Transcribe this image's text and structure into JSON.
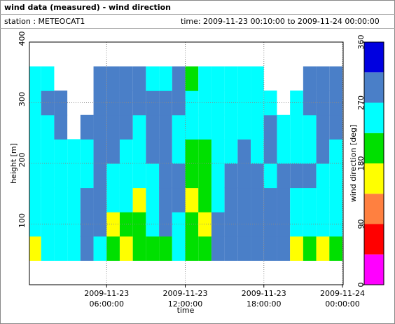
{
  "header": {
    "title": "wind data (measured) - wind direction",
    "station": "station : METEOCAT1",
    "time": "time: 2009-11-23 00:10:00 to 2009-11-24 00:00:00"
  },
  "chart_data": {
    "type": "heatmap",
    "xlabel": "time",
    "ylabel": "height [m]",
    "zlabel": "wind direction [deg]",
    "xlim": [
      0,
      24
    ],
    "xticks": [
      {
        "value": 6,
        "label": [
          "2009-11-23",
          "06:00:00"
        ]
      },
      {
        "value": 12,
        "label": [
          "2009-11-23",
          "12:00:00"
        ]
      },
      {
        "value": 18,
        "label": [
          "2009-11-23",
          "18:00:00"
        ]
      },
      {
        "value": 24,
        "label": [
          "2009-11-24",
          "00:00:00"
        ]
      }
    ],
    "ylim": [
      0,
      400
    ],
    "yticks": [
      100,
      200,
      300,
      400
    ],
    "zlim": [
      0,
      360
    ],
    "zticks": [
      0,
      90,
      180,
      270,
      360
    ],
    "colors": [
      "#ff00ff",
      "#ff0000",
      "#ff8040",
      "#ffff00",
      "#00e000",
      "#00ffff",
      "#4a7fc8",
      "#0000e0"
    ],
    "grid": true,
    "x": [
      0.5,
      1.5,
      2.5,
      3.5,
      4.5,
      5.5,
      6.5,
      7.5,
      8.5,
      9.5,
      10.5,
      11.5,
      12.5,
      13.5,
      14.5,
      15.5,
      16.5,
      17.5,
      18.5,
      19.5,
      20.5,
      21.5,
      22.5,
      23.5
    ],
    "y": [
      60,
      100,
      140,
      180,
      220,
      260,
      300,
      340
    ],
    "z": [
      [
        160,
        250,
        250,
        250,
        250,
        250,
        250,
        250
      ],
      [
        250,
        250,
        250,
        250,
        250,
        250,
        290,
        250
      ],
      [
        250,
        250,
        250,
        250,
        250,
        290,
        290,
        null
      ],
      [
        250,
        250,
        250,
        250,
        250,
        null,
        null,
        null
      ],
      [
        290,
        290,
        290,
        250,
        250,
        290,
        null,
        null
      ],
      [
        250,
        290,
        290,
        290,
        290,
        290,
        290,
        290
      ],
      [
        200,
        160,
        250,
        250,
        290,
        290,
        290,
        290
      ],
      [
        160,
        200,
        250,
        250,
        250,
        290,
        290,
        290
      ],
      [
        200,
        200,
        160,
        250,
        250,
        250,
        290,
        290
      ],
      [
        200,
        250,
        250,
        250,
        290,
        290,
        290,
        250
      ],
      [
        200,
        290,
        290,
        290,
        290,
        290,
        290,
        250
      ],
      [
        250,
        250,
        290,
        290,
        250,
        250,
        290,
        290
      ],
      [
        200,
        200,
        160,
        200,
        200,
        250,
        250,
        200
      ],
      [
        200,
        160,
        200,
        200,
        200,
        250,
        250,
        250
      ],
      [
        290,
        290,
        250,
        250,
        250,
        250,
        250,
        250
      ],
      [
        290,
        290,
        290,
        290,
        250,
        250,
        250,
        250
      ],
      [
        290,
        290,
        290,
        290,
        290,
        250,
        250,
        250
      ],
      [
        290,
        290,
        290,
        290,
        250,
        250,
        250,
        250
      ],
      [
        290,
        290,
        290,
        250,
        290,
        290,
        250,
        null
      ],
      [
        290,
        290,
        290,
        290,
        250,
        250,
        null,
        null
      ],
      [
        160,
        250,
        250,
        290,
        250,
        250,
        250,
        null
      ],
      [
        200,
        250,
        250,
        290,
        250,
        250,
        290,
        290
      ],
      [
        160,
        250,
        250,
        250,
        290,
        290,
        290,
        290
      ],
      [
        200,
        250,
        250,
        250,
        250,
        290,
        290,
        290
      ]
    ]
  }
}
